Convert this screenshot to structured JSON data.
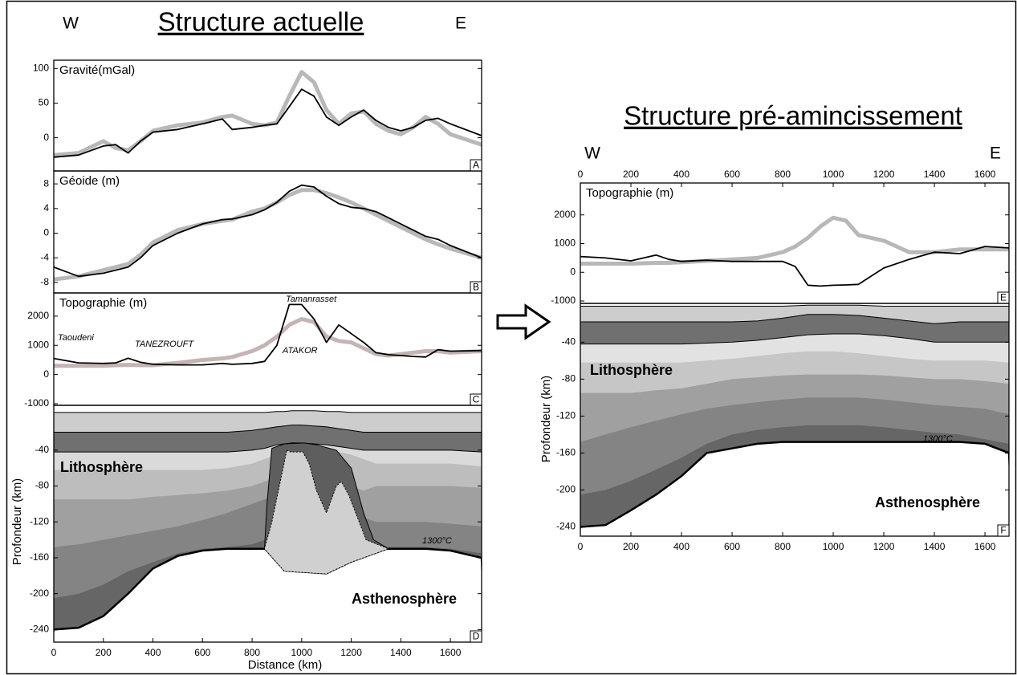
{
  "chart_data": [
    {
      "type": "line",
      "heading": "Structure actuelle",
      "west": "W",
      "east": "E",
      "title": "Gravité(mGal)",
      "panel": "A",
      "xlim": [
        0,
        1726
      ],
      "ylim": [
        -48,
        112
      ],
      "yticks": [
        0,
        50,
        100
      ],
      "x": [
        0,
        100,
        200,
        250,
        300,
        350,
        400,
        500,
        600,
        680,
        720,
        800,
        850,
        900,
        950,
        1000,
        1050,
        1100,
        1150,
        1200,
        1250,
        1300,
        1350,
        1400,
        1450,
        1500,
        1550,
        1600,
        1726
      ],
      "series": [
        {
          "color": "#b8b8b8",
          "line_width": 5,
          "values": [
            -25,
            -22,
            -5,
            -15,
            -18,
            -5,
            10,
            18,
            22,
            30,
            32,
            20,
            18,
            22,
            60,
            95,
            80,
            40,
            20,
            35,
            38,
            20,
            10,
            5,
            15,
            30,
            20,
            5,
            -10
          ]
        },
        {
          "color": "#000000",
          "line_width": 1.8,
          "values": [
            -28,
            -25,
            -12,
            -10,
            -22,
            -5,
            8,
            12,
            20,
            27,
            12,
            15,
            18,
            20,
            45,
            70,
            60,
            30,
            18,
            30,
            40,
            25,
            15,
            10,
            15,
            25,
            28,
            20,
            3
          ]
        }
      ]
    },
    {
      "type": "line",
      "title": "Géoide (m)",
      "panel": "B",
      "xlim": [
        0,
        1726
      ],
      "ylim": [
        -9.7,
        10.1
      ],
      "yticks": [
        8,
        4,
        0,
        -4,
        -8
      ],
      "x": [
        0,
        100,
        200,
        250,
        300,
        350,
        400,
        500,
        600,
        680,
        720,
        800,
        850,
        900,
        950,
        1000,
        1050,
        1100,
        1150,
        1200,
        1250,
        1300,
        1350,
        1400,
        1450,
        1500,
        1550,
        1600,
        1726
      ],
      "series": [
        {
          "color": "#b8b8b8",
          "line_width": 5,
          "values": [
            -7.5,
            -7,
            -6,
            -5.5,
            -5,
            -3.5,
            -1.5,
            0.5,
            1.5,
            2,
            2.2,
            3.5,
            4,
            5,
            6.2,
            7,
            7,
            6.5,
            5.8,
            5,
            4,
            3,
            2,
            1,
            0,
            -1,
            -1.8,
            -2.5,
            -4
          ]
        },
        {
          "color": "#000000",
          "line_width": 1.8,
          "values": [
            -5.5,
            -7,
            -6.5,
            -6,
            -5.5,
            -4,
            -2,
            0,
            1.5,
            2.2,
            2.3,
            3,
            3.8,
            5,
            6.8,
            7.8,
            7.5,
            6,
            4.8,
            4.2,
            4,
            3.5,
            2.5,
            1.5,
            0.5,
            -0.5,
            -1,
            -2,
            -4
          ]
        }
      ]
    },
    {
      "type": "line",
      "title": "Topographie (m)",
      "panel": "C",
      "xlim": [
        0,
        1726
      ],
      "ylim": [
        -1055,
        2795
      ],
      "yticks": [
        2000,
        1000,
        0,
        -1000
      ],
      "annotations": [
        "Taoudeni",
        "TANEZROUFT",
        "Tamanrasset",
        "ATAKOR"
      ],
      "x": [
        0,
        100,
        200,
        250,
        300,
        350,
        400,
        500,
        600,
        680,
        720,
        800,
        850,
        900,
        950,
        1000,
        1050,
        1100,
        1150,
        1200,
        1250,
        1300,
        1350,
        1400,
        1450,
        1500,
        1550,
        1600,
        1726
      ],
      "series": [
        {
          "color": "#c4b4b4",
          "line_width": 5,
          "values": [
            300,
            300,
            300,
            320,
            330,
            320,
            320,
            400,
            500,
            550,
            600,
            800,
            1000,
            1300,
            1700,
            1900,
            1800,
            1300,
            1150,
            1100,
            900,
            700,
            650,
            700,
            750,
            800,
            800,
            750,
            800
          ]
        },
        {
          "color": "#000000",
          "line_width": 1.8,
          "values": [
            550,
            400,
            380,
            400,
            560,
            420,
            350,
            330,
            330,
            380,
            350,
            380,
            450,
            1000,
            2400,
            2400,
            1900,
            1100,
            1700,
            1400,
            1100,
            750,
            680,
            650,
            620,
            600,
            850,
            800,
            820
          ]
        }
      ]
    },
    {
      "type": "section",
      "panel": "D",
      "y_label": "Profondeur (km)",
      "x_label": "Distance (km)",
      "xlim": [
        0,
        1726
      ],
      "ylim": [
        -254,
        10
      ],
      "xticks": [
        0,
        200,
        400,
        600,
        800,
        1000,
        1200,
        1400,
        1600
      ],
      "yticks": [
        -40,
        -80,
        -120,
        -160,
        -200,
        -240
      ],
      "annotations": [
        "Lithosphère",
        "Asthenosphère",
        "1300°C"
      ],
      "x": [
        0,
        100,
        200,
        300,
        400,
        500,
        600,
        700,
        800,
        850,
        900,
        930,
        960,
        1000,
        1050,
        1100,
        1150,
        1200,
        1250,
        1300,
        1350,
        1400,
        1500,
        1600,
        1726
      ],
      "series": [
        {
          "color": "#cdcdcd",
          "line_width": 1,
          "values": [
            2,
            2,
            2,
            2,
            2,
            2,
            2,
            2,
            2,
            2,
            3,
            3,
            4,
            4,
            4,
            3,
            3,
            2,
            2,
            2,
            2,
            2,
            2,
            2,
            2
          ]
        },
        {
          "color": "#707070",
          "line_width": 1,
          "values": [
            -20,
            -20,
            -20,
            -20,
            -20,
            -20,
            -20,
            -20,
            -18,
            -16,
            -14,
            -13,
            -12,
            -12,
            -13,
            -14,
            -16,
            -18,
            -20,
            -20,
            -20,
            -20,
            -20,
            -20,
            -20
          ]
        },
        {
          "color": "#dadada",
          "line_width": 1,
          "values": [
            -42,
            -42,
            -42,
            -42,
            -42,
            -42,
            -42,
            -42,
            -40,
            -38,
            -34,
            -33,
            -32,
            -32,
            -33,
            -34,
            -36,
            -38,
            -40,
            -40,
            -40,
            -40,
            -40,
            -40,
            -42
          ]
        },
        {
          "color": "#bdbdbd",
          "line_width": 0,
          "values": [
            -62,
            -62,
            -62,
            -62,
            -62,
            -62,
            -62,
            -60,
            -55,
            -50,
            -45,
            -40,
            -38,
            -38,
            -38,
            -40,
            -42,
            -45,
            -50,
            -55,
            -55,
            -55,
            -55,
            -55,
            -58
          ]
        },
        {
          "color": "#a0a0a0",
          "line_width": 0,
          "values": [
            -95,
            -95,
            -95,
            -95,
            -92,
            -90,
            -88,
            -85,
            -80,
            -75,
            -70,
            -60,
            -55,
            -55,
            -60,
            -70,
            -75,
            -80,
            -85,
            -80,
            -80,
            -80,
            -80,
            -80,
            -82
          ]
        },
        {
          "color": "#848484",
          "line_width": 0,
          "values": [
            -148,
            -145,
            -140,
            -135,
            -130,
            -125,
            -118,
            -110,
            -100,
            -95,
            -90,
            -80,
            -75,
            -75,
            -80,
            -90,
            -100,
            -110,
            -115,
            -120,
            -120,
            -120,
            -120,
            -122,
            -125
          ]
        },
        {
          "color": "#666666",
          "line_width": 0,
          "values": [
            -205,
            -200,
            -190,
            -175,
            -165,
            -155,
            -150,
            -148,
            -145,
            -140,
            -130,
            -120,
            -110,
            -110,
            -115,
            -125,
            -135,
            -140,
            -145,
            -148,
            -148,
            -148,
            -148,
            -150,
            -155
          ]
        },
        {
          "color": "#ffffff",
          "line_width": 2.5,
          "values": [
            -240,
            -238,
            -225,
            -200,
            -172,
            -158,
            -152,
            -150,
            -150,
            -150,
            -150,
            -150,
            -150,
            -150,
            -150,
            -150,
            -150,
            -150,
            -150,
            -150,
            -150,
            -150,
            -150,
            -152,
            -160
          ]
        }
      ],
      "features": [
        {
          "color": "#5e5e5e",
          "x": [
            880,
            930,
            1010,
            1060,
            1140,
            1200,
            1250,
            1290,
            1350,
            1200,
            1100,
            930,
            850,
            860
          ],
          "y": [
            -38,
            -33,
            -32,
            -34,
            -40,
            -60,
            -110,
            -140,
            -150,
            -165,
            -178,
            -175,
            -150,
            -100
          ]
        },
        {
          "color": "#d0d0d0",
          "x": [
            940,
            955,
            1005,
            1030,
            1060,
            1100,
            1140,
            1160,
            1190,
            1260,
            1350,
            1200,
            1100,
            930,
            850,
            880,
            910
          ],
          "y": [
            -40,
            -42,
            -42,
            -55,
            -85,
            -110,
            -80,
            -75,
            -90,
            -140,
            -150,
            -165,
            -178,
            -175,
            -150,
            -120,
            -80
          ]
        }
      ]
    },
    {
      "type": "line",
      "heading": "Structure pré-amincissement",
      "west": "W",
      "east": "E",
      "title": "Topographie (m)",
      "panel": "E",
      "xlim": [
        0,
        1695
      ],
      "ylim": [
        -1083,
        3111
      ],
      "xticks": [
        0,
        200,
        400,
        600,
        800,
        1000,
        1200,
        1400,
        1600
      ],
      "yticks": [
        2000,
        1000,
        0,
        -1000
      ],
      "x": [
        0,
        100,
        200,
        300,
        350,
        400,
        500,
        600,
        700,
        800,
        850,
        900,
        950,
        1000,
        1050,
        1100,
        1200,
        1300,
        1400,
        1500,
        1600,
        1695
      ],
      "series": [
        {
          "color": "#b8b8b8",
          "line_width": 5,
          "values": [
            300,
            300,
            300,
            330,
            330,
            350,
            400,
            450,
            500,
            700,
            900,
            1200,
            1600,
            1900,
            1800,
            1300,
            1100,
            700,
            700,
            800,
            800,
            800
          ]
        },
        {
          "color": "#000000",
          "line_width": 1.8,
          "values": [
            550,
            500,
            400,
            600,
            450,
            380,
            420,
            380,
            380,
            380,
            200,
            -450,
            -480,
            -450,
            -440,
            -420,
            150,
            450,
            700,
            650,
            900,
            850
          ]
        }
      ]
    },
    {
      "type": "section",
      "panel": "F",
      "y_label": "Profondeur (km)",
      "xlim": [
        0,
        1695
      ],
      "ylim": [
        -250,
        2
      ],
      "xticks": [
        0,
        200,
        400,
        600,
        800,
        1000,
        1200,
        1400,
        1600
      ],
      "yticks": [
        -40,
        -80,
        -120,
        -160,
        -200,
        -240
      ],
      "annotations": [
        "Lithosphère",
        "Asthenosphère",
        "1300°C"
      ],
      "x": [
        0,
        100,
        200,
        300,
        400,
        500,
        600,
        700,
        800,
        900,
        1000,
        1100,
        1200,
        1300,
        1400,
        1500,
        1600,
        1695
      ],
      "series": [
        {
          "color": "#cdcdcd",
          "line_width": 1,
          "values": [
            -1,
            -1,
            -1,
            -1,
            -1,
            -1,
            -1,
            -1,
            -1,
            0,
            0,
            0,
            -1,
            -1,
            -1,
            -1,
            -1,
            -1
          ]
        },
        {
          "color": "#707070",
          "line_width": 1,
          "values": [
            -18,
            -18,
            -18,
            -18,
            -18,
            -18,
            -18,
            -17,
            -14,
            -10,
            -10,
            -11,
            -14,
            -17,
            -20,
            -18,
            -18,
            -18
          ]
        },
        {
          "color": "#e2e2e2",
          "line_width": 1,
          "values": [
            -42,
            -42,
            -42,
            -42,
            -42,
            -41,
            -40,
            -38,
            -35,
            -32,
            -31,
            -31,
            -33,
            -36,
            -40,
            -40,
            -40,
            -40
          ]
        },
        {
          "color": "#c6c6c6",
          "line_width": 0,
          "values": [
            -62,
            -62,
            -62,
            -62,
            -62,
            -60,
            -58,
            -55,
            -52,
            -50,
            -50,
            -52,
            -55,
            -58,
            -60,
            -60,
            -60,
            -62
          ]
        },
        {
          "color": "#a0a0a0",
          "line_width": 0,
          "values": [
            -95,
            -95,
            -95,
            -92,
            -90,
            -85,
            -80,
            -78,
            -76,
            -75,
            -75,
            -75,
            -76,
            -78,
            -80,
            -80,
            -82,
            -85
          ]
        },
        {
          "color": "#848484",
          "line_width": 0,
          "values": [
            -148,
            -140,
            -132,
            -125,
            -118,
            -112,
            -108,
            -105,
            -102,
            -100,
            -100,
            -100,
            -102,
            -105,
            -108,
            -110,
            -112,
            -118
          ]
        },
        {
          "color": "#666666",
          "line_width": 0,
          "values": [
            -205,
            -200,
            -190,
            -178,
            -165,
            -150,
            -140,
            -135,
            -132,
            -130,
            -130,
            -130,
            -132,
            -135,
            -138,
            -140,
            -145,
            -150
          ]
        },
        {
          "color": "#ffffff",
          "line_width": 2.5,
          "values": [
            -240,
            -238,
            -222,
            -205,
            -185,
            -160,
            -155,
            -150,
            -148,
            -148,
            -148,
            -148,
            -148,
            -148,
            -148,
            -148,
            -150,
            -160
          ]
        }
      ]
    }
  ]
}
